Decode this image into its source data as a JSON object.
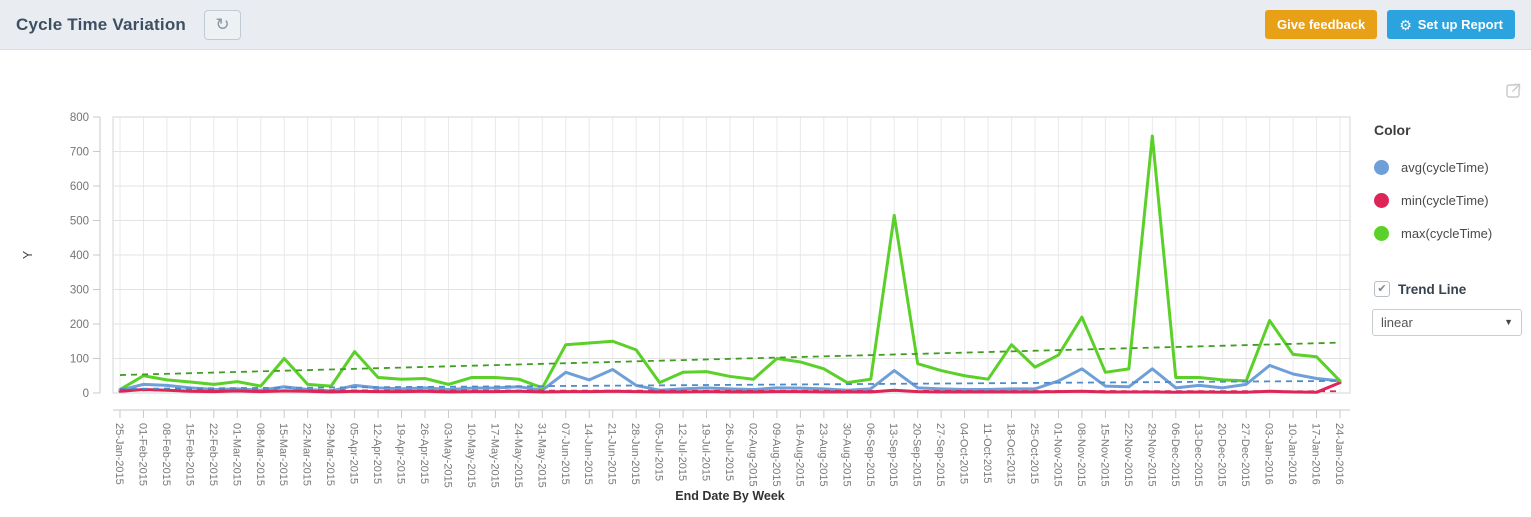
{
  "header": {
    "title": "Cycle Time Variation",
    "refresh_icon": "↻",
    "give_feedback_label": "Give feedback",
    "setup_report_label": "Set up Report",
    "gear_icon": "⚙",
    "feedback_color": "#e8a117",
    "setup_color": "#2aa3df"
  },
  "panel": {
    "color_heading": "Color",
    "legend": [
      {
        "label": "avg(cycleTime)",
        "color": "#6f9fd8"
      },
      {
        "label": "min(cycleTime)",
        "color": "#dd2657"
      },
      {
        "label": "max(cycleTime)",
        "color": "#5ad028"
      }
    ],
    "trend_line_label": "Trend Line",
    "trend_checked": true,
    "check_icon": "✔",
    "trend_type_selected": "linear",
    "dropdown_arrow": "▼"
  },
  "chart_data": {
    "type": "line",
    "title": "",
    "xlabel": "End Date By Week",
    "ylabel": "Y",
    "ylim": [
      0,
      800
    ],
    "yticks": [
      0,
      100,
      200,
      300,
      400,
      500,
      600,
      700,
      800
    ],
    "grid": true,
    "legend_position": "right",
    "trend": "linear",
    "categories": [
      "25-Jan-2015",
      "01-Feb-2015",
      "08-Feb-2015",
      "15-Feb-2015",
      "22-Feb-2015",
      "01-Mar-2015",
      "08-Mar-2015",
      "15-Mar-2015",
      "22-Mar-2015",
      "29-Mar-2015",
      "05-Apr-2015",
      "12-Apr-2015",
      "19-Apr-2015",
      "26-Apr-2015",
      "03-May-2015",
      "10-May-2015",
      "17-May-2015",
      "24-May-2015",
      "31-May-2015",
      "07-Jun-2015",
      "14-Jun-2015",
      "21-Jun-2015",
      "28-Jun-2015",
      "05-Jul-2015",
      "12-Jul-2015",
      "19-Jul-2015",
      "26-Jul-2015",
      "02-Aug-2015",
      "09-Aug-2015",
      "16-Aug-2015",
      "23-Aug-2015",
      "30-Aug-2015",
      "06-Sep-2015",
      "13-Sep-2015",
      "20-Sep-2015",
      "27-Sep-2015",
      "04-Oct-2015",
      "11-Oct-2015",
      "18-Oct-2015",
      "25-Oct-2015",
      "01-Nov-2015",
      "08-Nov-2015",
      "15-Nov-2015",
      "22-Nov-2015",
      "29-Nov-2015",
      "06-Dec-2015",
      "13-Dec-2015",
      "20-Dec-2015",
      "27-Dec-2015",
      "03-Jan-2016",
      "10-Jan-2016",
      "17-Jan-2016",
      "24-Jan-2016"
    ],
    "series": [
      {
        "name": "avg(cycleTime)",
        "color": "#6f9fd8",
        "trend_color": "#4f8bc9",
        "values": [
          8,
          25,
          22,
          15,
          10,
          12,
          8,
          18,
          10,
          6,
          22,
          15,
          12,
          15,
          10,
          14,
          15,
          18,
          8,
          60,
          38,
          68,
          22,
          8,
          12,
          15,
          12,
          10,
          15,
          14,
          12,
          8,
          12,
          65,
          15,
          12,
          10,
          10,
          12,
          12,
          35,
          70,
          20,
          18,
          70,
          15,
          22,
          15,
          25,
          80,
          55,
          42,
          35
        ],
        "trend_line": {
          "start": 12,
          "end": 35
        }
      },
      {
        "name": "min(cycleTime)",
        "color": "#dd2657",
        "trend_color": "#dd2657",
        "values": [
          5,
          10,
          8,
          5,
          4,
          6,
          4,
          6,
          5,
          3,
          5,
          4,
          4,
          5,
          3,
          4,
          4,
          5,
          3,
          4,
          4,
          5,
          4,
          3,
          3,
          4,
          3,
          3,
          4,
          4,
          3,
          3,
          3,
          8,
          4,
          3,
          3,
          3,
          3,
          3,
          4,
          5,
          3,
          3,
          3,
          2,
          3,
          2,
          2,
          5,
          3,
          2,
          30
        ],
        "trend_line": {
          "start": 8,
          "end": 5
        }
      },
      {
        "name": "max(cycleTime)",
        "color": "#5ad028",
        "trend_color": "#3f9e22",
        "values": [
          10,
          50,
          38,
          32,
          25,
          33,
          20,
          100,
          25,
          20,
          120,
          45,
          40,
          42,
          25,
          45,
          45,
          40,
          15,
          140,
          145,
          150,
          125,
          30,
          60,
          62,
          48,
          40,
          100,
          90,
          70,
          30,
          40,
          515,
          85,
          65,
          50,
          40,
          140,
          75,
          110,
          220,
          60,
          70,
          745,
          45,
          45,
          38,
          35,
          210,
          112,
          105,
          35
        ],
        "trend_line": {
          "start": 52,
          "end": 146
        }
      }
    ]
  }
}
